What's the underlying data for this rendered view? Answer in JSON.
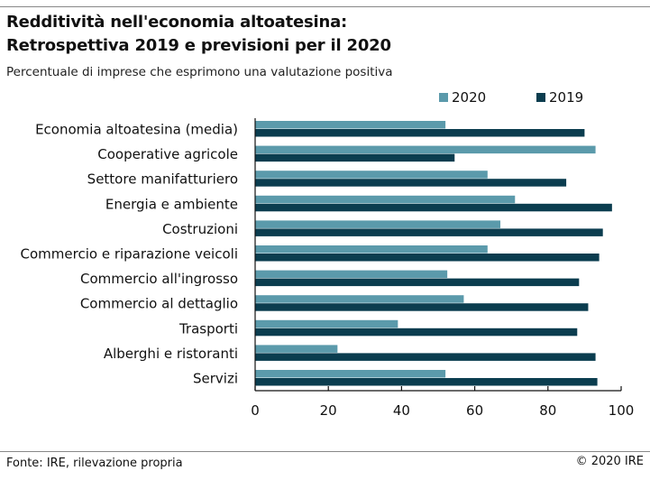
{
  "title_line1": "Redditività nell'economia altoatesina:",
  "title_line2": "Retrospettiva 2019 e previsioni per il 2020",
  "subtitle": "Percentuale di imprese che esprimono una valutazione positiva",
  "footer_source": "Fonte: IRE, rilevazione propria",
  "footer_copyright": "© 2020 IRE",
  "colors": {
    "series_2020": "#5b9aab",
    "series_2019": "#0b3d4f",
    "axis": "#111111"
  },
  "chart_data": {
    "type": "bar",
    "orientation": "horizontal",
    "categories": [
      "Economia altoatesina (media)",
      "Cooperative agricole",
      "Settore manifatturiero",
      "Energia e ambiente",
      "Costruzioni",
      "Commercio e riparazione veicoli",
      "Commercio all'ingrosso",
      "Commercio al dettaglio",
      "Trasporti",
      "Alberghi e ristoranti",
      "Servizi"
    ],
    "series": [
      {
        "name": "2020",
        "values": [
          52,
          93,
          63.5,
          71,
          67,
          63.5,
          52.5,
          57,
          39,
          22.5,
          52
        ]
      },
      {
        "name": "2019",
        "values": [
          90,
          54.5,
          85,
          97.5,
          95,
          94,
          88.5,
          91,
          88,
          93,
          93.5
        ]
      }
    ],
    "xlim": [
      0,
      100
    ],
    "xticks": [
      0,
      20,
      40,
      60,
      80,
      100
    ],
    "legend": "top-right",
    "grid": false
  }
}
